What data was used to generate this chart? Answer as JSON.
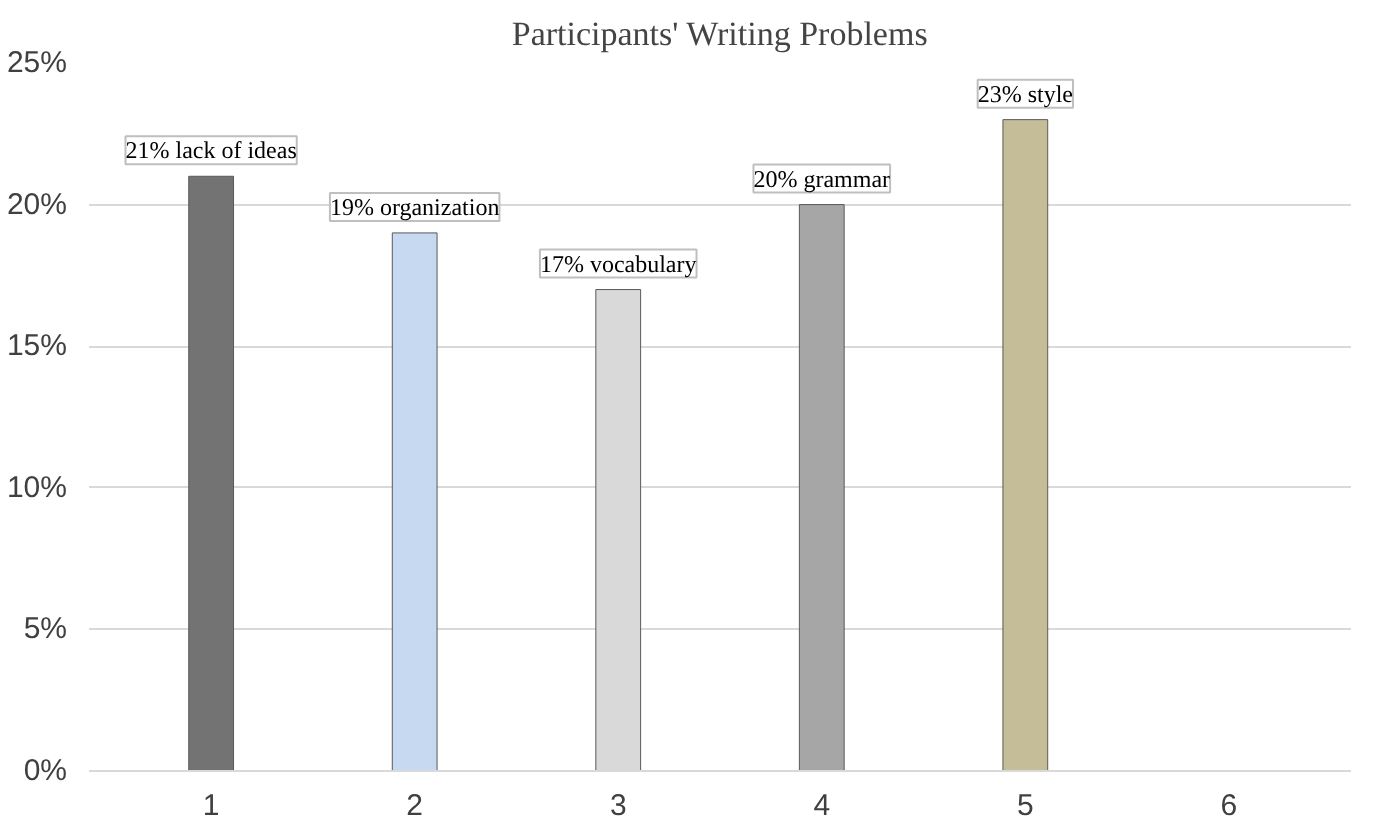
{
  "chart_data": {
    "type": "bar",
    "title": "Participants' Writing Problems",
    "categories": [
      "1",
      "2",
      "3",
      "4",
      "5",
      "6"
    ],
    "values": [
      21,
      19,
      17,
      20,
      23,
      null
    ],
    "colors": [
      "#737373",
      "#c6d9f1",
      "#d9d9d9",
      "#a6a6a6",
      "#c4bd97",
      "#ffffff"
    ],
    "value_labels": [
      "21% lack of ideas",
      "19% organization",
      "17% vocabulary",
      "20% grammar",
      "23% style",
      null
    ],
    "ylim": [
      0,
      25
    ],
    "yticks": [
      {
        "value": 0,
        "label": "0%"
      },
      {
        "value": 5,
        "label": "5%"
      },
      {
        "value": 10,
        "label": "10%"
      },
      {
        "value": 15,
        "label": "15%"
      },
      {
        "value": 20,
        "label": "20%"
      },
      {
        "value": 25,
        "label": "25%"
      }
    ],
    "grid": "y"
  }
}
